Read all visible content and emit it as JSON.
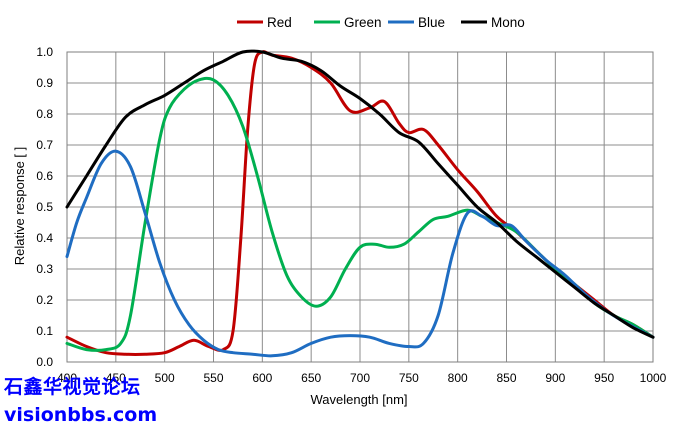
{
  "chart_data": {
    "type": "line",
    "title": "",
    "xlabel": "Wavelength  [nm]",
    "ylabel": "Relative response [ ]",
    "xlim": [
      400,
      1000
    ],
    "ylim": [
      0,
      1.0
    ],
    "x_ticks": [
      400,
      450,
      500,
      550,
      600,
      650,
      700,
      750,
      800,
      850,
      900,
      950,
      1000
    ],
    "x_tick_labels": [
      "400",
      "450",
      "500",
      "550",
      "600",
      "650",
      "700",
      "750",
      "800",
      "850",
      "900",
      "950",
      "1000"
    ],
    "y_ticks": [
      0,
      0.1,
      0.2,
      0.3,
      0.4,
      0.5,
      0.6,
      0.7,
      0.8,
      0.9,
      1.0
    ],
    "y_tick_labels": [
      "0.0",
      "0.1",
      "0.2",
      "0.3",
      "0.4",
      "0.5",
      "0.6",
      "0.7",
      "0.8",
      "0.9",
      "1.0"
    ],
    "grid": true,
    "legend_position": "top",
    "series": [
      {
        "name": "Red",
        "color": "#c00000",
        "points": [
          [
            400,
            0.08
          ],
          [
            420,
            0.05
          ],
          [
            440,
            0.03
          ],
          [
            460,
            0.025
          ],
          [
            480,
            0.025
          ],
          [
            500,
            0.03
          ],
          [
            515,
            0.05
          ],
          [
            530,
            0.07
          ],
          [
            545,
            0.05
          ],
          [
            560,
            0.04
          ],
          [
            570,
            0.1
          ],
          [
            578,
            0.4
          ],
          [
            585,
            0.75
          ],
          [
            592,
            0.96
          ],
          [
            600,
            1.0
          ],
          [
            610,
            0.99
          ],
          [
            630,
            0.98
          ],
          [
            650,
            0.95
          ],
          [
            670,
            0.9
          ],
          [
            690,
            0.81
          ],
          [
            710,
            0.82
          ],
          [
            725,
            0.84
          ],
          [
            740,
            0.77
          ],
          [
            750,
            0.74
          ],
          [
            765,
            0.75
          ],
          [
            780,
            0.7
          ],
          [
            800,
            0.62
          ],
          [
            820,
            0.55
          ],
          [
            840,
            0.47
          ],
          [
            860,
            0.42
          ],
          [
            880,
            0.36
          ],
          [
            900,
            0.3
          ],
          [
            920,
            0.25
          ],
          [
            940,
            0.2
          ],
          [
            960,
            0.15
          ],
          [
            980,
            0.12
          ],
          [
            1000,
            0.08
          ]
        ]
      },
      {
        "name": "Green",
        "color": "#00b050",
        "points": [
          [
            400,
            0.06
          ],
          [
            420,
            0.04
          ],
          [
            440,
            0.04
          ],
          [
            455,
            0.06
          ],
          [
            465,
            0.15
          ],
          [
            480,
            0.45
          ],
          [
            495,
            0.72
          ],
          [
            505,
            0.82
          ],
          [
            520,
            0.88
          ],
          [
            535,
            0.91
          ],
          [
            550,
            0.91
          ],
          [
            565,
            0.86
          ],
          [
            580,
            0.76
          ],
          [
            595,
            0.6
          ],
          [
            610,
            0.42
          ],
          [
            625,
            0.28
          ],
          [
            640,
            0.21
          ],
          [
            655,
            0.18
          ],
          [
            670,
            0.21
          ],
          [
            685,
            0.3
          ],
          [
            700,
            0.37
          ],
          [
            715,
            0.38
          ],
          [
            730,
            0.37
          ],
          [
            745,
            0.38
          ],
          [
            760,
            0.42
          ],
          [
            775,
            0.46
          ],
          [
            790,
            0.47
          ],
          [
            810,
            0.49
          ],
          [
            825,
            0.47
          ],
          [
            840,
            0.45
          ],
          [
            860,
            0.42
          ],
          [
            880,
            0.36
          ],
          [
            900,
            0.3
          ],
          [
            920,
            0.25
          ],
          [
            940,
            0.19
          ],
          [
            960,
            0.15
          ],
          [
            980,
            0.12
          ],
          [
            1000,
            0.08
          ]
        ]
      },
      {
        "name": "Blue",
        "color": "#1f6dc2",
        "points": [
          [
            400,
            0.34
          ],
          [
            410,
            0.45
          ],
          [
            420,
            0.53
          ],
          [
            435,
            0.64
          ],
          [
            450,
            0.68
          ],
          [
            465,
            0.63
          ],
          [
            480,
            0.48
          ],
          [
            495,
            0.32
          ],
          [
            510,
            0.2
          ],
          [
            525,
            0.12
          ],
          [
            540,
            0.07
          ],
          [
            555,
            0.04
          ],
          [
            570,
            0.03
          ],
          [
            590,
            0.025
          ],
          [
            610,
            0.02
          ],
          [
            630,
            0.03
          ],
          [
            650,
            0.06
          ],
          [
            670,
            0.08
          ],
          [
            690,
            0.085
          ],
          [
            710,
            0.08
          ],
          [
            730,
            0.06
          ],
          [
            750,
            0.05
          ],
          [
            765,
            0.06
          ],
          [
            780,
            0.15
          ],
          [
            795,
            0.35
          ],
          [
            810,
            0.48
          ],
          [
            825,
            0.47
          ],
          [
            840,
            0.44
          ],
          [
            855,
            0.44
          ],
          [
            870,
            0.39
          ],
          [
            890,
            0.33
          ],
          [
            910,
            0.28
          ],
          [
            930,
            0.22
          ],
          [
            950,
            0.17
          ],
          [
            970,
            0.13
          ],
          [
            1000,
            0.08
          ]
        ]
      },
      {
        "name": "Mono",
        "color": "#000000",
        "points": [
          [
            400,
            0.5
          ],
          [
            420,
            0.6
          ],
          [
            440,
            0.7
          ],
          [
            460,
            0.79
          ],
          [
            480,
            0.83
          ],
          [
            500,
            0.86
          ],
          [
            520,
            0.9
          ],
          [
            540,
            0.94
          ],
          [
            560,
            0.97
          ],
          [
            580,
            1.0
          ],
          [
            600,
            1.0
          ],
          [
            620,
            0.98
          ],
          [
            640,
            0.97
          ],
          [
            660,
            0.94
          ],
          [
            680,
            0.89
          ],
          [
            700,
            0.85
          ],
          [
            720,
            0.8
          ],
          [
            740,
            0.74
          ],
          [
            760,
            0.71
          ],
          [
            780,
            0.64
          ],
          [
            800,
            0.57
          ],
          [
            820,
            0.5
          ],
          [
            840,
            0.45
          ],
          [
            860,
            0.39
          ],
          [
            880,
            0.34
          ],
          [
            900,
            0.29
          ],
          [
            920,
            0.24
          ],
          [
            940,
            0.19
          ],
          [
            960,
            0.15
          ],
          [
            980,
            0.11
          ],
          [
            1000,
            0.08
          ]
        ]
      }
    ]
  },
  "watermark": {
    "line1": "石鑫华视觉论坛",
    "line2": "visionbbs.com"
  }
}
